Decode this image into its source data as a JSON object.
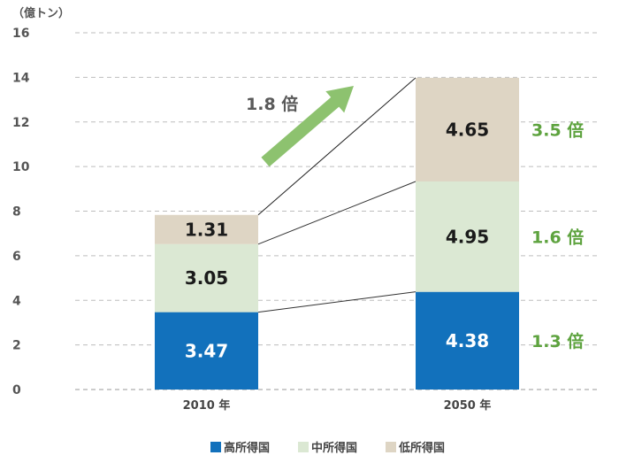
{
  "chart_data": {
    "type": "bar",
    "stacked": true,
    "unit_label": "（億トン）",
    "categories": [
      "2010 年",
      "2050 年"
    ],
    "ylim": [
      0,
      16
    ],
    "yticks": [
      0,
      2,
      4,
      6,
      8,
      10,
      12,
      14,
      16
    ],
    "grid": true,
    "legend_position": "bottom",
    "series": [
      {
        "name": "高所得国",
        "values": [
          3.47,
          4.38
        ],
        "labels": [
          "3.47",
          "4.38"
        ],
        "color": "#1271bc",
        "label_color": "#ffffff",
        "multiplier": "1.3 倍"
      },
      {
        "name": "中所得国",
        "values": [
          3.05,
          4.95
        ],
        "labels": [
          "3.05",
          "4.95"
        ],
        "color": "#dbe8d3",
        "label_color": "#1a1a1a",
        "multiplier": "1.6 倍"
      },
      {
        "name": "低所得国",
        "values": [
          1.31,
          4.65
        ],
        "labels": [
          "1.31",
          "4.65"
        ],
        "color": "#ded5c4",
        "label_color": "#1a1a1a",
        "multiplier": "3.5 倍"
      }
    ],
    "total_growth": "1.8 倍",
    "multiplier_color": "#5ea33f",
    "arrow_color": "#8dc26f"
  }
}
